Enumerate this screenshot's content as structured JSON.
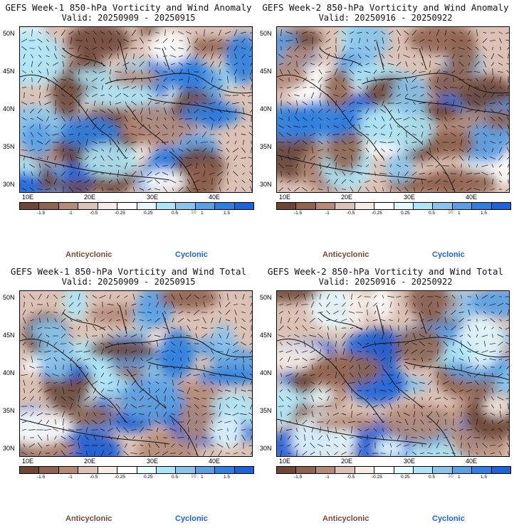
{
  "panels": [
    {
      "title": "GEFS Week-1 850-hPa Vorticity and Wind Anomaly",
      "valid": "Valid: 20250909 - 20250915",
      "seed": 11
    },
    {
      "title": "GEFS Week-2 850-hPa Vorticity and Wind Anomaly",
      "valid": "Valid: 20250916 - 20250922",
      "seed": 23
    },
    {
      "title": "GEFS Week-1 850-hPa Vorticity and Wind Total",
      "valid": "Valid: 20250909 - 20250915",
      "seed": 37
    },
    {
      "title": "GEFS Week-2 850-hPa Vorticity and Wind Total",
      "valid": "Valid: 20250916 - 20250922",
      "seed": 51
    }
  ],
  "lat_labels": [
    "50N",
    "45N",
    "40N",
    "35N",
    "30N"
  ],
  "lon_labels": [
    "10E",
    "20E",
    "30E",
    "40E"
  ],
  "colorbar": {
    "colors": [
      "#6e4636",
      "#8f6350",
      "#b48a78",
      "#dcc2b6",
      "#f6ece6",
      "#ffffff",
      "#e6fbff",
      "#aee6f7",
      "#8ac4ec",
      "#5aa0e6",
      "#2f7fe0",
      "#1d62d8"
    ],
    "labels": [
      "-1.5",
      "-1",
      "-0.5",
      "-0.25",
      "0.25",
      "0.5",
      "1",
      "1.5"
    ],
    "magnitude": "10"
  },
  "legend": {
    "anticyclonic": "Anticyclonic",
    "cyclonic": "Cyclonic",
    "anticyclonic_color": "#7a4a36",
    "cyclonic_color": "#1d62d8"
  }
}
